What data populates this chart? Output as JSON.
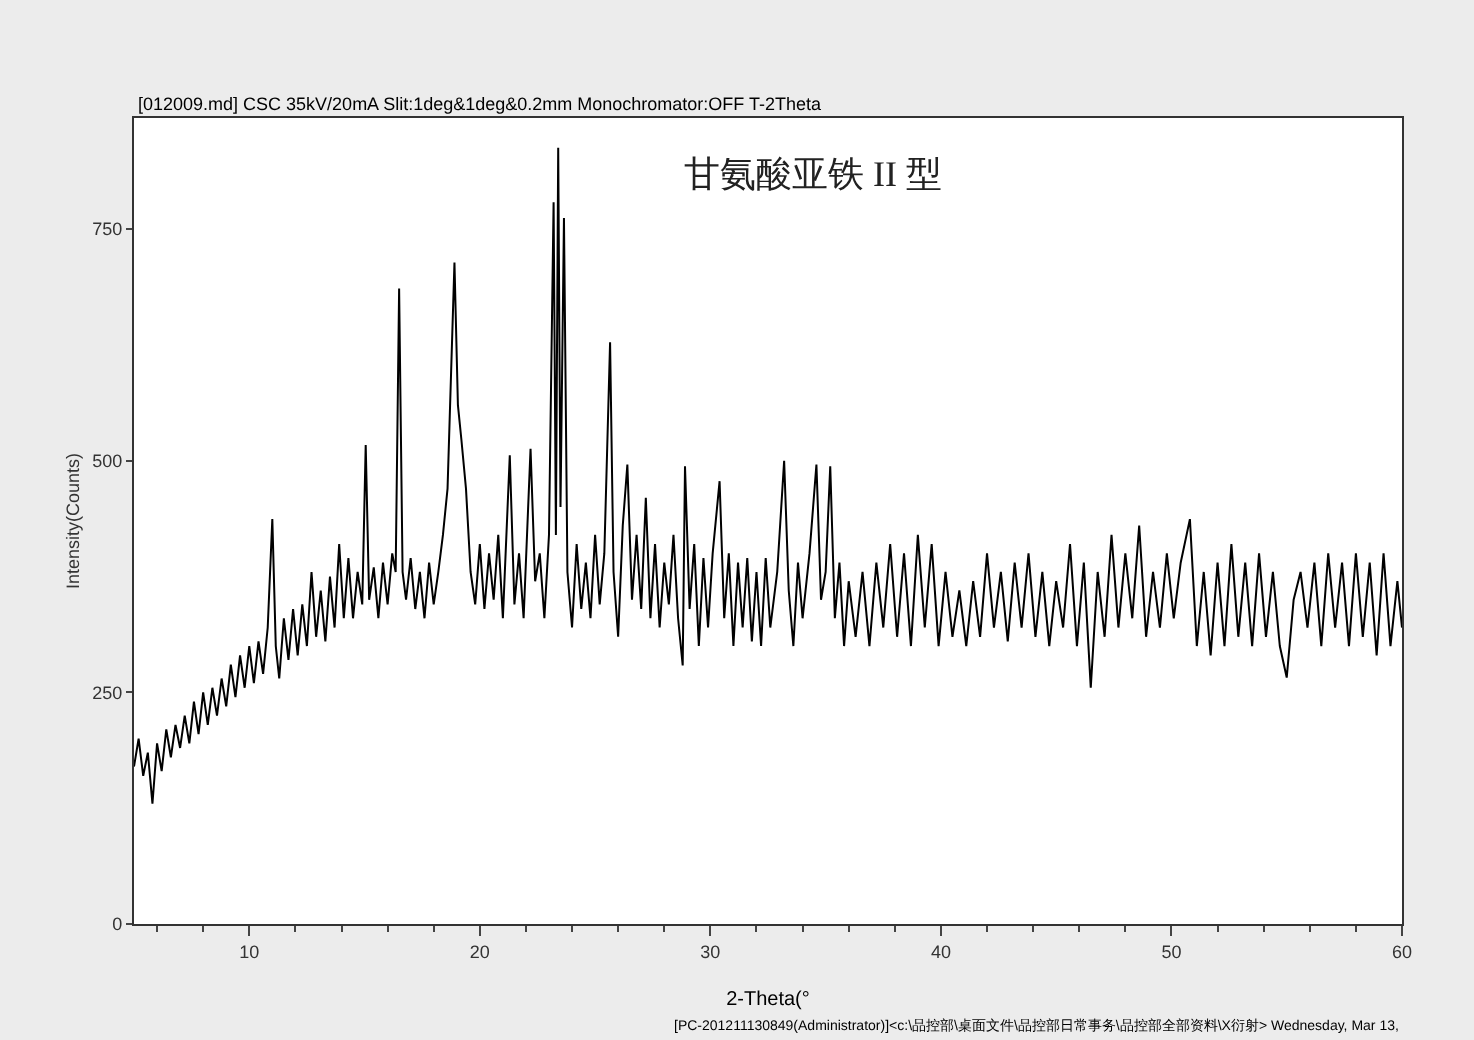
{
  "chart_data": {
    "type": "line",
    "title": "甘氨酸亚铁 II 型",
    "subtitle": "[012009.md] CSC 35kV/20mA Slit:1deg&1deg&0.2mm Monochromator:OFF T-2Theta",
    "xlabel": "2-Theta(°",
    "ylabel": "Intensity(Counts)",
    "annotations": [
      "[PC-201211130849(Administrator)]<c:\\品控部\\桌面文件\\品控部日常事务\\品控部全部资料\\X衍射> Wednesday, Mar 13,"
    ],
    "xlim": [
      5,
      60
    ],
    "xticks": [
      10,
      20,
      30,
      40,
      50,
      60
    ],
    "ylim": [
      0,
      870
    ],
    "yticks": [
      0,
      250,
      500,
      750
    ],
    "marker": "none",
    "line_style": "solid",
    "series": [
      {
        "color": "#000000",
        "x": [
          5.0,
          5.2,
          5.4,
          5.6,
          5.8,
          6.0,
          6.2,
          6.4,
          6.6,
          6.8,
          7.0,
          7.2,
          7.4,
          7.6,
          7.8,
          8.0,
          8.2,
          8.4,
          8.6,
          8.8,
          9.0,
          9.2,
          9.4,
          9.6,
          9.8,
          10.0,
          10.2,
          10.4,
          10.6,
          10.8,
          11.0,
          11.15,
          11.3,
          11.5,
          11.7,
          11.9,
          12.1,
          12.3,
          12.5,
          12.7,
          12.9,
          13.1,
          13.3,
          13.5,
          13.7,
          13.9,
          14.1,
          14.3,
          14.5,
          14.7,
          14.9,
          15.05,
          15.2,
          15.4,
          15.6,
          15.8,
          16.0,
          16.2,
          16.35,
          16.5,
          16.65,
          16.8,
          17.0,
          17.2,
          17.4,
          17.6,
          17.8,
          18.0,
          18.2,
          18.4,
          18.6,
          18.9,
          19.05,
          19.2,
          19.4,
          19.6,
          19.8,
          20.0,
          20.2,
          20.4,
          20.6,
          20.8,
          21.0,
          21.3,
          21.5,
          21.7,
          21.9,
          22.2,
          22.4,
          22.6,
          22.8,
          23.0,
          23.2,
          23.3,
          23.4,
          23.5,
          23.65,
          23.8,
          24.0,
          24.2,
          24.4,
          24.6,
          24.8,
          25.0,
          25.2,
          25.4,
          25.65,
          25.8,
          26.0,
          26.2,
          26.4,
          26.6,
          26.8,
          27.0,
          27.2,
          27.4,
          27.6,
          27.8,
          28.0,
          28.2,
          28.4,
          28.6,
          28.8,
          28.9,
          29.1,
          29.3,
          29.5,
          29.7,
          29.9,
          30.1,
          30.4,
          30.6,
          30.8,
          31.0,
          31.2,
          31.4,
          31.6,
          31.8,
          32.0,
          32.2,
          32.4,
          32.6,
          32.9,
          33.2,
          33.4,
          33.6,
          33.8,
          34.0,
          34.3,
          34.6,
          34.8,
          35.0,
          35.2,
          35.4,
          35.6,
          35.8,
          36.0,
          36.3,
          36.6,
          36.9,
          37.2,
          37.5,
          37.8,
          38.1,
          38.4,
          38.7,
          39.0,
          39.3,
          39.6,
          39.9,
          40.2,
          40.5,
          40.8,
          41.1,
          41.4,
          41.7,
          42.0,
          42.3,
          42.6,
          42.9,
          43.2,
          43.5,
          43.8,
          44.1,
          44.4,
          44.7,
          45.0,
          45.3,
          45.6,
          45.9,
          46.2,
          46.5,
          46.8,
          47.1,
          47.4,
          47.7,
          48.0,
          48.3,
          48.6,
          48.9,
          49.2,
          49.5,
          49.8,
          50.1,
          50.4,
          50.8,
          51.1,
          51.4,
          51.7,
          52.0,
          52.3,
          52.6,
          52.9,
          53.2,
          53.5,
          53.8,
          54.1,
          54.4,
          54.7,
          55.0,
          55.3,
          55.6,
          55.9,
          56.2,
          56.5,
          56.8,
          57.1,
          57.4,
          57.7,
          58.0,
          58.3,
          58.6,
          58.9,
          59.2,
          59.5,
          59.8,
          60.0
        ],
        "values": [
          170,
          200,
          160,
          185,
          130,
          195,
          165,
          210,
          180,
          215,
          190,
          225,
          195,
          240,
          205,
          250,
          215,
          255,
          225,
          265,
          235,
          280,
          245,
          290,
          255,
          300,
          260,
          305,
          270,
          320,
          437,
          300,
          265,
          330,
          285,
          340,
          290,
          345,
          300,
          380,
          310,
          360,
          305,
          375,
          320,
          410,
          330,
          395,
          330,
          380,
          345,
          517,
          350,
          385,
          330,
          390,
          345,
          400,
          380,
          686,
          380,
          350,
          395,
          340,
          380,
          330,
          390,
          345,
          380,
          420,
          470,
          714,
          560,
          523,
          470,
          380,
          345,
          410,
          340,
          400,
          350,
          420,
          330,
          506,
          345,
          400,
          330,
          513,
          370,
          400,
          330,
          420,
          779,
          420,
          838,
          450,
          762,
          380,
          320,
          410,
          340,
          390,
          330,
          420,
          345,
          400,
          628,
          380,
          310,
          430,
          496,
          350,
          420,
          340,
          460,
          330,
          410,
          320,
          390,
          345,
          420,
          330,
          279,
          494,
          340,
          410,
          300,
          395,
          320,
          400,
          478,
          330,
          400,
          300,
          390,
          320,
          395,
          305,
          380,
          300,
          395,
          320,
          380,
          500,
          360,
          300,
          390,
          330,
          400,
          496,
          350,
          380,
          494,
          330,
          390,
          300,
          370,
          310,
          380,
          300,
          390,
          320,
          410,
          310,
          400,
          300,
          420,
          320,
          410,
          300,
          380,
          310,
          360,
          300,
          370,
          310,
          400,
          320,
          380,
          305,
          390,
          320,
          400,
          310,
          380,
          300,
          370,
          320,
          410,
          300,
          390,
          255,
          380,
          310,
          420,
          320,
          400,
          330,
          430,
          310,
          380,
          320,
          400,
          330,
          390,
          437,
          300,
          380,
          290,
          390,
          300,
          410,
          310,
          390,
          300,
          400,
          310,
          380,
          300,
          266,
          350,
          380,
          320,
          390,
          300,
          400,
          320,
          390,
          300,
          400,
          310,
          390,
          290,
          400,
          300,
          370,
          320
        ]
      }
    ]
  }
}
